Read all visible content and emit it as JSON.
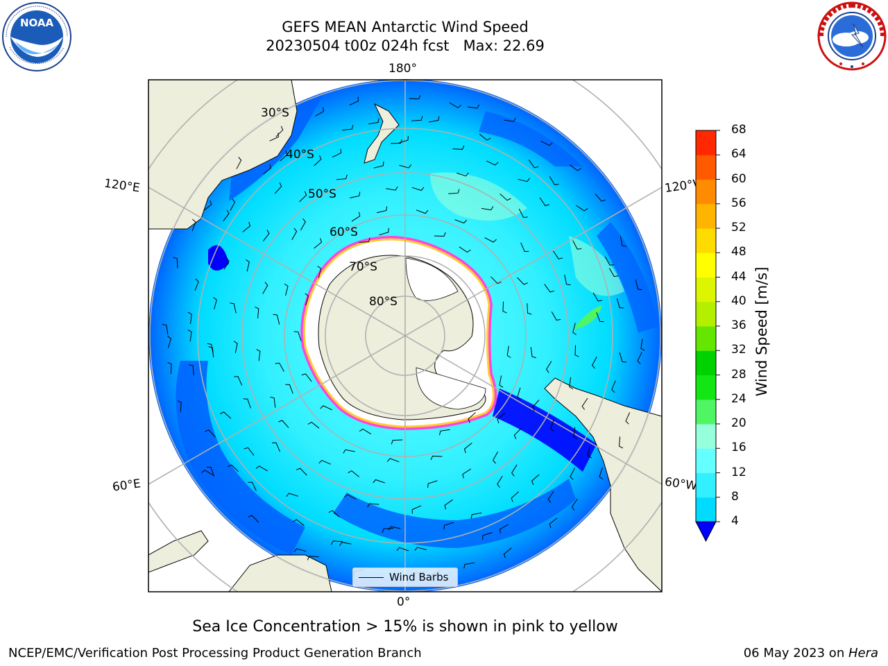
{
  "title": {
    "line1": "GEFS MEAN Antarctic Wind Speed",
    "line2": "20230504 t00z 024h fcst   Max: 22.69"
  },
  "logos": {
    "left": {
      "name": "noaa-logo",
      "text": "NOAA",
      "ring_text": "NATIONAL OCEANIC AND ATMOSPHERIC ADMINISTRATION · U.S. DEPARTMENT OF COMMERCE"
    },
    "right": {
      "name": "nws-logo",
      "ring_text": "NATIONAL WEATHER SERVICE"
    }
  },
  "map": {
    "projection": "south-polar-stereographic",
    "longitude_labels": {
      "top": "180°",
      "bottom": "0°",
      "left_upper": "120°E",
      "left_lower": "60°E",
      "right_upper": "120°W",
      "right_lower": "60°W"
    },
    "latitude_labels": [
      "30°S",
      "40°S",
      "50°S",
      "60°S",
      "70°S",
      "80°S"
    ],
    "legend": {
      "label": "Wind Barbs"
    },
    "colors": {
      "land": "#eeeedd",
      "ice_shelf": "#ffffff",
      "sea_ice_pink": "#ff44dd",
      "sea_ice_yellow": "#ffcc33",
      "grid": "#b0b0b0"
    }
  },
  "colorbar": {
    "label": "Wind Speed [m/s]",
    "ticks": [
      "4",
      "8",
      "12",
      "16",
      "20",
      "24",
      "28",
      "32",
      "36",
      "40",
      "44",
      "48",
      "52",
      "56",
      "60",
      "64",
      "68"
    ],
    "colors": [
      "#0064ff",
      "#00dcff",
      "#32f0ff",
      "#64ffff",
      "#96ffdc",
      "#50f564",
      "#14e614",
      "#00d200",
      "#64e600",
      "#b4ef00",
      "#dcf500",
      "#ffff00",
      "#ffdc00",
      "#ffb400",
      "#ff8c00",
      "#ff5a00",
      "#ff2800",
      "#ff0000"
    ],
    "under_color": "#0000ff"
  },
  "note": "Sea Ice Concentration > 15% is shown in pink to yellow",
  "footer": {
    "left": "NCEP/EMC/Verification Post Processing Product Generation Branch",
    "right_date": "06 May 2023 on ",
    "right_host": "Hera"
  }
}
